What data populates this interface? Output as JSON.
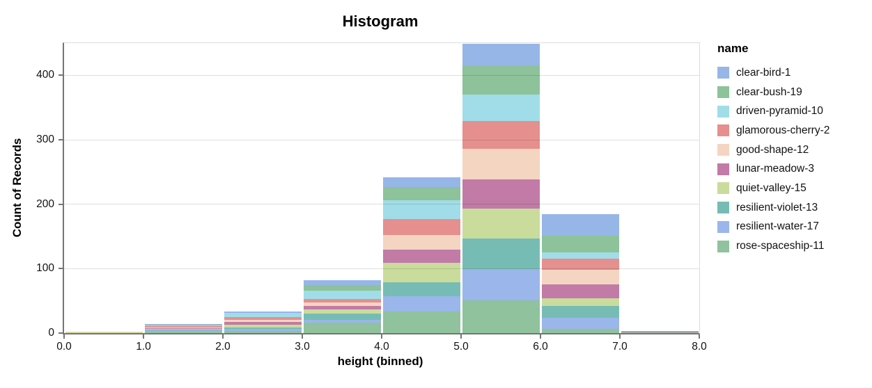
{
  "title": "Histogram",
  "axes": {
    "x": {
      "title": "height (binned)",
      "tick_labels": [
        "0.0",
        "1.0",
        "2.0",
        "3.0",
        "4.0",
        "5.0",
        "6.0",
        "7.0",
        "8.0"
      ],
      "min": 0,
      "max": 8
    },
    "y": {
      "title": "Count of Records",
      "tick_values": [
        0,
        100,
        200,
        300,
        400
      ],
      "max": 450
    }
  },
  "legend": {
    "title": "name"
  },
  "chart_data": {
    "type": "bar",
    "stacked": true,
    "title": "Histogram",
    "xlabel": "height (binned)",
    "ylabel": "Count of Records",
    "xlim": [
      0,
      8
    ],
    "ylim": [
      0,
      450
    ],
    "grid": "horizontal",
    "legend_position": "right",
    "bin_edges": [
      0,
      1,
      2,
      3,
      4,
      5,
      6,
      7,
      8
    ],
    "bin_totals": [
      2,
      14,
      34,
      82,
      242,
      449,
      185,
      3
    ],
    "series": [
      {
        "name": "clear-bird-1",
        "color": "#97b6e8",
        "values": [
          0,
          1,
          3,
          8,
          15,
          34,
          34,
          1
        ]
      },
      {
        "name": "clear-bush-19",
        "color": "#8dc29a",
        "values": [
          0,
          1,
          0,
          8,
          21,
          45,
          26,
          0
        ]
      },
      {
        "name": "driven-pyramid-10",
        "color": "#a0dde8",
        "values": [
          0,
          1,
          6,
          13,
          29,
          41,
          10,
          0
        ]
      },
      {
        "name": "glamorous-cherry-2",
        "color": "#e58f8e",
        "values": [
          0,
          2,
          4,
          6,
          25,
          43,
          17,
          0
        ]
      },
      {
        "name": "good-shape-12",
        "color": "#f4d5c2",
        "values": [
          1,
          1,
          4,
          5,
          22,
          48,
          22,
          0
        ]
      },
      {
        "name": "lunar-meadow-3",
        "color": "#c17ba6",
        "values": [
          0,
          1,
          4,
          5,
          21,
          45,
          22,
          1
        ]
      },
      {
        "name": "quiet-valley-15",
        "color": "#c9dc9c",
        "values": [
          1,
          2,
          4,
          7,
          30,
          46,
          12,
          0
        ]
      },
      {
        "name": "resilient-violet-13",
        "color": "#76bcb4",
        "values": [
          0,
          1,
          2,
          9,
          22,
          48,
          18,
          0
        ]
      },
      {
        "name": "resilient-water-17",
        "color": "#9ab6ea",
        "values": [
          0,
          2,
          4,
          5,
          24,
          48,
          17,
          0
        ]
      },
      {
        "name": "rose-spaceship-11",
        "color": "#8fc29d",
        "values": [
          0,
          2,
          3,
          16,
          33,
          51,
          7,
          1
        ]
      }
    ],
    "stack_order_bottom_to_top": [
      "rose-spaceship-11",
      "resilient-water-17",
      "resilient-violet-13",
      "quiet-valley-15",
      "lunar-meadow-3",
      "good-shape-12",
      "glamorous-cherry-2",
      "driven-pyramid-10",
      "clear-bush-19",
      "clear-bird-1"
    ]
  }
}
